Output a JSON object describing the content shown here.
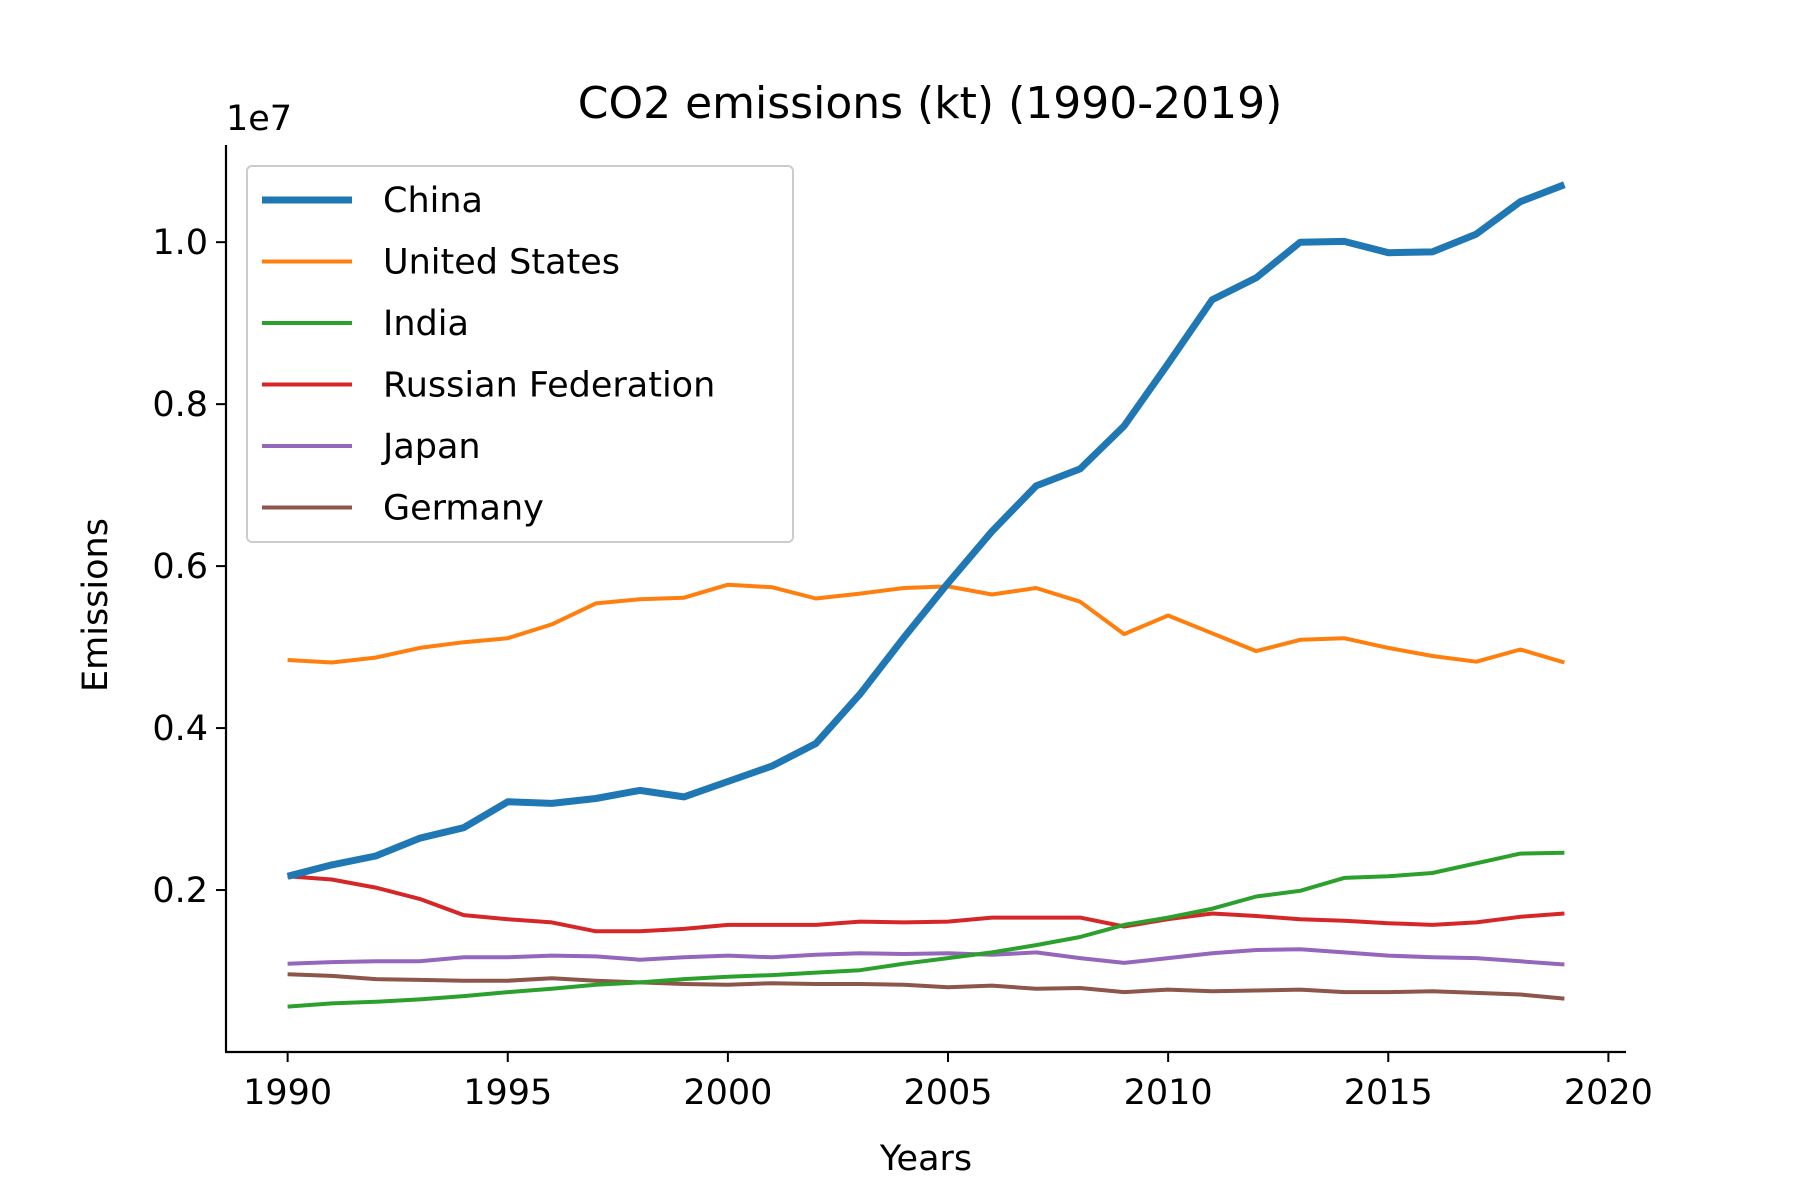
{
  "chart_data": {
    "type": "line",
    "title": "CO2 emissions (kt) (1990-2019)",
    "xlabel": "Years",
    "ylabel": "Emissions",
    "y_offset_label": "1e7",
    "x_ticks": [
      "1990",
      "1995",
      "2000",
      "2005",
      "2010",
      "2015",
      "2020"
    ],
    "y_ticks": [
      "0.2",
      "0.4",
      "0.6",
      "0.8",
      "1.0"
    ],
    "xlim": [
      1988.6,
      2020.4
    ],
    "ylim": [
      0.0,
      11200000
    ],
    "grid": false,
    "legend_position": "top-left",
    "x": [
      1990,
      1991,
      1992,
      1993,
      1994,
      1995,
      1996,
      1997,
      1998,
      1999,
      2000,
      2001,
      2002,
      2003,
      2004,
      2005,
      2006,
      2007,
      2008,
      2009,
      2010,
      2011,
      2012,
      2013,
      2014,
      2015,
      2016,
      2017,
      2018,
      2019
    ],
    "series": [
      {
        "name": "China",
        "color": "#1f77b4",
        "emphasis": true,
        "values": [
          2170000,
          2310000,
          2420000,
          2640000,
          2770000,
          3090000,
          3070000,
          3130000,
          3230000,
          3150000,
          3340000,
          3530000,
          3810000,
          4420000,
          5120000,
          5790000,
          6430000,
          6990000,
          7200000,
          7730000,
          8500000,
          9290000,
          9560000,
          10000000,
          10010000,
          9870000,
          9880000,
          10100000,
          10500000,
          10710000
        ]
      },
      {
        "name": "United States",
        "color": "#ff7f0e",
        "values": [
          4840000,
          4810000,
          4870000,
          4990000,
          5060000,
          5110000,
          5280000,
          5540000,
          5590000,
          5610000,
          5770000,
          5740000,
          5600000,
          5660000,
          5730000,
          5750000,
          5650000,
          5730000,
          5560000,
          5160000,
          5390000,
          5170000,
          4950000,
          5090000,
          5110000,
          4990000,
          4890000,
          4820000,
          4970000,
          4810000
        ]
      },
      {
        "name": "India",
        "color": "#2ca02c",
        "values": [
          560000,
          600000,
          620000,
          650000,
          690000,
          740000,
          780000,
          830000,
          860000,
          900000,
          930000,
          950000,
          980000,
          1010000,
          1090000,
          1160000,
          1230000,
          1320000,
          1420000,
          1570000,
          1660000,
          1770000,
          1920000,
          1990000,
          2150000,
          2170000,
          2210000,
          2330000,
          2450000,
          2460000
        ]
      },
      {
        "name": "Russian Federation",
        "color": "#d62728",
        "values": [
          2170000,
          2130000,
          2030000,
          1890000,
          1690000,
          1640000,
          1600000,
          1490000,
          1490000,
          1520000,
          1570000,
          1570000,
          1570000,
          1610000,
          1600000,
          1610000,
          1660000,
          1660000,
          1660000,
          1550000,
          1640000,
          1710000,
          1680000,
          1640000,
          1620000,
          1590000,
          1570000,
          1600000,
          1670000,
          1710000
        ]
      },
      {
        "name": "Japan",
        "color": "#9467bd",
        "values": [
          1090000,
          1110000,
          1120000,
          1120000,
          1170000,
          1170000,
          1190000,
          1180000,
          1140000,
          1170000,
          1190000,
          1170000,
          1200000,
          1220000,
          1210000,
          1220000,
          1200000,
          1230000,
          1160000,
          1100000,
          1160000,
          1220000,
          1260000,
          1270000,
          1230000,
          1190000,
          1170000,
          1160000,
          1120000,
          1080000
        ]
      },
      {
        "name": "Germany",
        "color": "#8c564b",
        "values": [
          960000,
          940000,
          900000,
          890000,
          880000,
          880000,
          910000,
          880000,
          860000,
          840000,
          830000,
          850000,
          840000,
          840000,
          830000,
          800000,
          820000,
          780000,
          790000,
          740000,
          770000,
          750000,
          760000,
          770000,
          740000,
          740000,
          750000,
          730000,
          710000,
          660000
        ]
      }
    ]
  }
}
